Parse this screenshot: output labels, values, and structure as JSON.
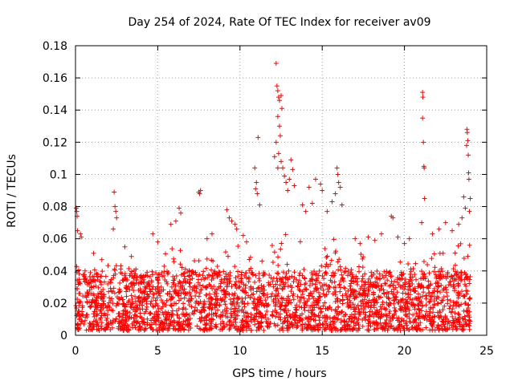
{
  "chart_data": {
    "type": "scatter",
    "title": "Day 254 of 2024, Rate Of TEC Index for receiver av09",
    "xlabel": "GPS time / hours",
    "ylabel": "ROTI / TECUs",
    "xlim": [
      0,
      25
    ],
    "ylim": [
      0,
      0.18
    ],
    "xticks": [
      0,
      5,
      10,
      15,
      20,
      25
    ],
    "yticks": [
      0,
      0.02,
      0.04,
      0.06,
      0.08,
      0.1,
      0.12,
      0.14,
      0.16,
      0.18
    ],
    "xtick_labels": [
      "0",
      "5",
      "10",
      "15",
      "20",
      "25"
    ],
    "ytick_labels": [
      "0",
      "0.02",
      "0.04",
      "0.06",
      "0.08",
      "0.1",
      "0.12",
      "0.14",
      "0.16",
      "0.18"
    ],
    "grid": true,
    "marker": "plus",
    "color": "#ff0000",
    "x_range_of_data": [
      0,
      24
    ],
    "points": [
      [
        0.05,
        0.079
      ],
      [
        0.08,
        0.077
      ],
      [
        0.1,
        0.074
      ],
      [
        0.12,
        0.065
      ],
      [
        0.3,
        0.063
      ],
      [
        0.35,
        0.061
      ],
      [
        2.35,
        0.089
      ],
      [
        2.4,
        0.08
      ],
      [
        2.45,
        0.077
      ],
      [
        2.5,
        0.073
      ],
      [
        2.3,
        0.066
      ],
      [
        7.5,
        0.089
      ],
      [
        7.55,
        0.088
      ],
      [
        7.6,
        0.09
      ],
      [
        10.9,
        0.104
      ],
      [
        11.0,
        0.095
      ],
      [
        10.95,
        0.091
      ],
      [
        11.05,
        0.088
      ],
      [
        11.1,
        0.123
      ],
      [
        11.2,
        0.081
      ],
      [
        12.2,
        0.169
      ],
      [
        12.25,
        0.155
      ],
      [
        12.3,
        0.152
      ],
      [
        12.35,
        0.148
      ],
      [
        12.4,
        0.146
      ],
      [
        12.5,
        0.149
      ],
      [
        12.55,
        0.141
      ],
      [
        12.3,
        0.136
      ],
      [
        12.4,
        0.13
      ],
      [
        12.45,
        0.124
      ],
      [
        12.2,
        0.12
      ],
      [
        12.35,
        0.113
      ],
      [
        12.5,
        0.108
      ],
      [
        12.6,
        0.104
      ],
      [
        12.7,
        0.099
      ],
      [
        12.8,
        0.095
      ],
      [
        12.3,
        0.104
      ],
      [
        12.1,
        0.111
      ],
      [
        13.1,
        0.109
      ],
      [
        13.2,
        0.103
      ],
      [
        13.0,
        0.097
      ],
      [
        13.3,
        0.093
      ],
      [
        12.9,
        0.09
      ],
      [
        14.2,
        0.092
      ],
      [
        14.6,
        0.097
      ],
      [
        14.9,
        0.094
      ],
      [
        15.0,
        0.09
      ],
      [
        15.9,
        0.104
      ],
      [
        15.95,
        0.1
      ],
      [
        16.0,
        0.095
      ],
      [
        16.1,
        0.092
      ],
      [
        15.8,
        0.088
      ],
      [
        15.6,
        0.083
      ],
      [
        16.2,
        0.081
      ],
      [
        19.2,
        0.074
      ],
      [
        19.3,
        0.073
      ],
      [
        21.1,
        0.151
      ],
      [
        21.12,
        0.148
      ],
      [
        21.1,
        0.135
      ],
      [
        21.15,
        0.12
      ],
      [
        21.18,
        0.105
      ],
      [
        21.2,
        0.104
      ],
      [
        21.22,
        0.085
      ],
      [
        21.05,
        0.07
      ],
      [
        23.8,
        0.128
      ],
      [
        23.82,
        0.126
      ],
      [
        23.85,
        0.121
      ],
      [
        23.78,
        0.118
      ],
      [
        23.88,
        0.112
      ],
      [
        23.9,
        0.101
      ],
      [
        23.92,
        0.097
      ],
      [
        24.0,
        0.085
      ],
      [
        23.95,
        0.077
      ],
      [
        23.6,
        0.086
      ],
      [
        23.7,
        0.079
      ],
      [
        23.5,
        0.073
      ],
      [
        9.2,
        0.078
      ],
      [
        9.35,
        0.073
      ],
      [
        9.5,
        0.071
      ],
      [
        9.7,
        0.069
      ],
      [
        9.8,
        0.066
      ],
      [
        10.2,
        0.062
      ],
      [
        10.4,
        0.058
      ],
      [
        8.0,
        0.06
      ],
      [
        8.3,
        0.063
      ],
      [
        6.3,
        0.079
      ],
      [
        6.4,
        0.076
      ],
      [
        5.8,
        0.069
      ],
      [
        6.1,
        0.071
      ],
      [
        4.7,
        0.063
      ],
      [
        5.0,
        0.058
      ],
      [
        1.1,
        0.051
      ],
      [
        1.6,
        0.047
      ],
      [
        3.0,
        0.055
      ],
      [
        3.4,
        0.049
      ],
      [
        17.0,
        0.06
      ],
      [
        17.3,
        0.057
      ],
      [
        17.8,
        0.061
      ],
      [
        18.2,
        0.059
      ],
      [
        18.6,
        0.063
      ],
      [
        19.6,
        0.061
      ],
      [
        20.0,
        0.057
      ],
      [
        20.3,
        0.06
      ],
      [
        21.7,
        0.063
      ],
      [
        22.1,
        0.066
      ],
      [
        22.5,
        0.07
      ],
      [
        22.9,
        0.065
      ],
      [
        23.3,
        0.069
      ],
      [
        13.8,
        0.081
      ],
      [
        14.0,
        0.077
      ],
      [
        14.4,
        0.082
      ],
      [
        15.3,
        0.077
      ]
    ],
    "dense_band": {
      "description_free": true,
      "x_from": 0,
      "x_to": 24,
      "y_low": 0.003,
      "y_high_typical": 0.04,
      "envelope": [
        [
          0,
          0.045
        ],
        [
          1,
          0.04
        ],
        [
          2,
          0.046
        ],
        [
          3,
          0.043
        ],
        [
          4,
          0.044
        ],
        [
          5,
          0.05
        ],
        [
          6,
          0.055
        ],
        [
          7,
          0.052
        ],
        [
          8,
          0.049
        ],
        [
          9,
          0.062
        ],
        [
          10,
          0.055
        ],
        [
          11,
          0.045
        ],
        [
          12,
          0.065
        ],
        [
          13,
          0.062
        ],
        [
          14,
          0.06
        ],
        [
          15,
          0.065
        ],
        [
          16,
          0.06
        ],
        [
          17,
          0.052
        ],
        [
          18,
          0.05
        ],
        [
          19,
          0.05
        ],
        [
          20,
          0.047
        ],
        [
          21,
          0.048
        ],
        [
          22,
          0.052
        ],
        [
          23,
          0.055
        ],
        [
          24,
          0.06
        ]
      ]
    }
  }
}
